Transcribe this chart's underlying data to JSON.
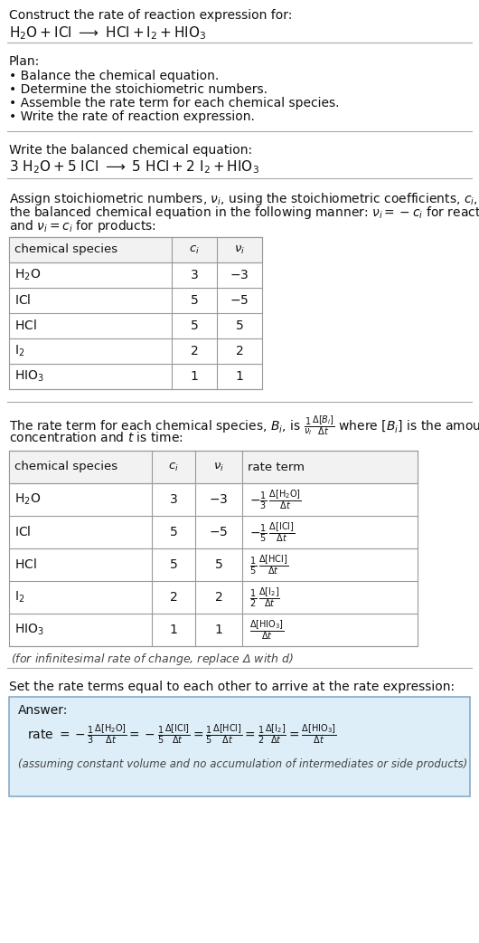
{
  "title_line1": "Construct the rate of reaction expression for:",
  "plan_header": "Plan:",
  "plan_items": [
    "• Balance the chemical equation.",
    "• Determine the stoichiometric numbers.",
    "• Assemble the rate term for each chemical species.",
    "• Write the rate of reaction expression."
  ],
  "balanced_header": "Write the balanced chemical equation:",
  "stoich_lines": [
    "Assign stoichiometric numbers, $\\nu_i$, using the stoichiometric coefficients, $c_i$, from",
    "the balanced chemical equation in the following manner: $\\nu_i = -c_i$ for reactants",
    "and $\\nu_i = c_i$ for products:"
  ],
  "rate_lines": [
    "The rate term for each chemical species, $B_i$, is $\\frac{1}{\\nu_i}\\frac{\\Delta[B_i]}{\\Delta t}$ where $[B_i]$ is the amount",
    "concentration and $t$ is time:"
  ],
  "infinitesimal_note": "(for infinitesimal rate of change, replace Δ with $d$)",
  "set_equal_header": "Set the rate terms equal to each other to arrive at the rate expression:",
  "answer_label": "Answer:",
  "answer_note": "(assuming constant volume and no accumulation of intermediates or side products)",
  "bg_color": "#ffffff",
  "answer_bg": "#ddeef8",
  "answer_border": "#88aacc",
  "separator_color": "#aaaaaa",
  "table_border": "#999999",
  "table_header_bg": "#f2f2f2"
}
